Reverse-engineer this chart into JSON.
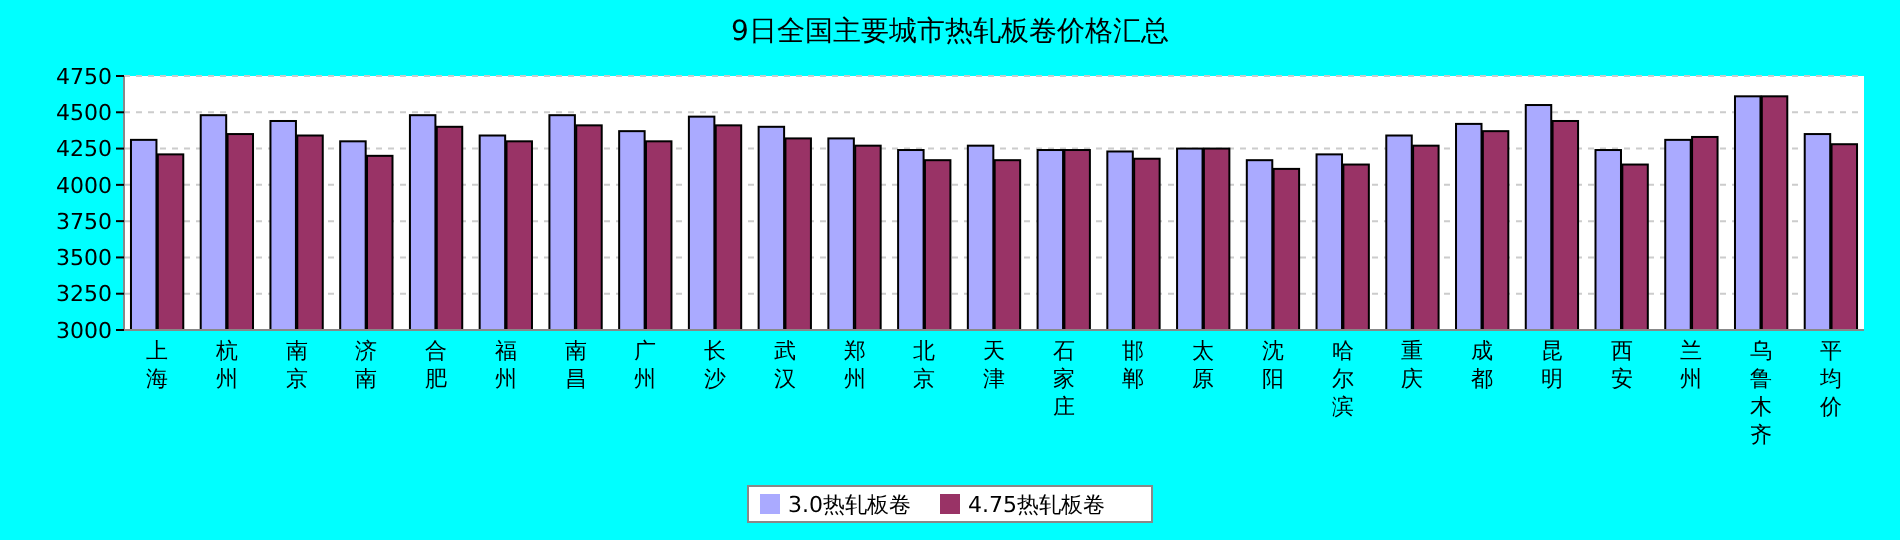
{
  "chart_data": {
    "type": "bar",
    "title": "9日全国主要城市热轧板卷价格汇总",
    "categories": [
      "上海",
      "杭州",
      "南京",
      "济南",
      "合肥",
      "福州",
      "南昌",
      "广州",
      "长沙",
      "武汉",
      "郑州",
      "北京",
      "天津",
      "石家庄",
      "邯郸",
      "太原",
      "沈阳",
      "哈尔滨",
      "重庆",
      "成都",
      "昆明",
      "西安",
      "兰州",
      "乌鲁木齐",
      "平均价"
    ],
    "series": [
      {
        "name": "3.0热轧板卷",
        "color": "#aaaaff",
        "values": [
          4310,
          4480,
          4440,
          4300,
          4480,
          4340,
          4480,
          4370,
          4470,
          4400,
          4320,
          4240,
          4270,
          4240,
          4230,
          4250,
          4170,
          4210,
          4340,
          4420,
          4550,
          4240,
          4310,
          4610,
          4350
        ]
      },
      {
        "name": "4.75热轧板卷",
        "color": "#993366",
        "values": [
          4210,
          4350,
          4340,
          4200,
          4400,
          4300,
          4410,
          4300,
          4410,
          4320,
          4270,
          4170,
          4170,
          4240,
          4180,
          4250,
          4110,
          4140,
          4270,
          4370,
          4440,
          4140,
          4330,
          4610,
          4280
        ]
      }
    ],
    "ylim": [
      3000,
      4750
    ],
    "yticks": [
      3000,
      3250,
      3500,
      3750,
      4000,
      4250,
      4500,
      4750
    ],
    "grid": "y",
    "legend": "bottom"
  }
}
